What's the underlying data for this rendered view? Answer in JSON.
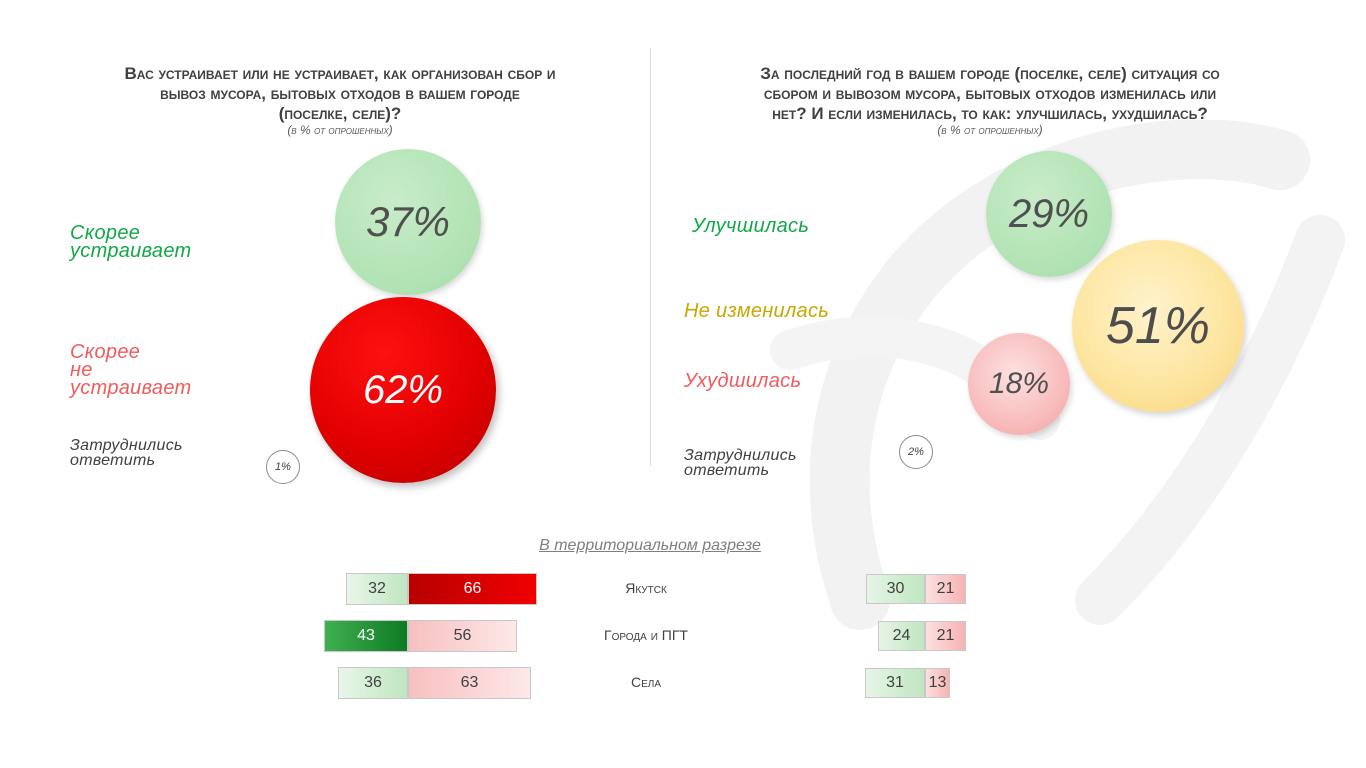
{
  "left_question": {
    "title_line1": "Вас устраивает или не устраивает, как организован сбор и",
    "title_line2": "вывоз мусора, бытовых отходов в вашем городе",
    "title_line3": "(поселке, селе)?",
    "subtitle": "(в % от опрошенных)"
  },
  "right_question": {
    "title_line1": "За последний год в вашем городе (поселке, селе) ситуация со",
    "title_line2": "сбором и вывозом мусора, бытовых отходов изменилась или",
    "title_line3": "нет? И если изменилась, то как: улучшилась, ухудшилась?",
    "subtitle": "(в % от опрошенных)"
  },
  "colors": {
    "green_text": "#12a84a",
    "red_text": "#f25b5b",
    "yellow_text": "#c9a600",
    "red_bubble": "#e20000",
    "green_bubble": "#b3e4b6",
    "yellow_bubble": "#fde6a1",
    "pink_bubble": "#f8bcbc"
  },
  "chart_data": [
    {
      "type": "bubble",
      "categories": [
        "Скорее устраивает",
        "Скорее не устраивает",
        "Затруднились ответить"
      ],
      "values": [
        37,
        62,
        1
      ],
      "labels": [
        "37%",
        "62%",
        "1%"
      ],
      "category_lines": [
        [
          "Скорее",
          "устраивает"
        ],
        [
          "Скорее",
          "не",
          "устраивает"
        ],
        [
          "Затруднились",
          "ответить"
        ]
      ]
    },
    {
      "type": "bubble",
      "categories": [
        "Улучшилась",
        "Не изменилась",
        "Ухудшилась",
        "Затруднились ответить"
      ],
      "values": [
        29,
        51,
        18,
        2
      ],
      "labels": [
        "29%",
        "51%",
        "18%",
        "2%"
      ],
      "category_lines": [
        [
          "Улучшилась"
        ],
        [
          "Не изменилась"
        ],
        [
          "Ухудшилась"
        ],
        [
          "Затруднились",
          "ответить"
        ]
      ]
    },
    {
      "type": "bar",
      "title": "В территориальном разрезе",
      "categories": [
        "Якутск",
        "Города и ПГТ",
        "Села"
      ],
      "left_bars": {
        "series": [
          {
            "values": [
              32,
              43,
              36
            ]
          },
          {
            "values": [
              66,
              56,
              63
            ]
          }
        ]
      },
      "right_bars": {
        "series": [
          {
            "values": [
              30,
              24,
              31
            ]
          },
          {
            "values": [
              21,
              21,
              13
            ]
          }
        ]
      }
    }
  ]
}
